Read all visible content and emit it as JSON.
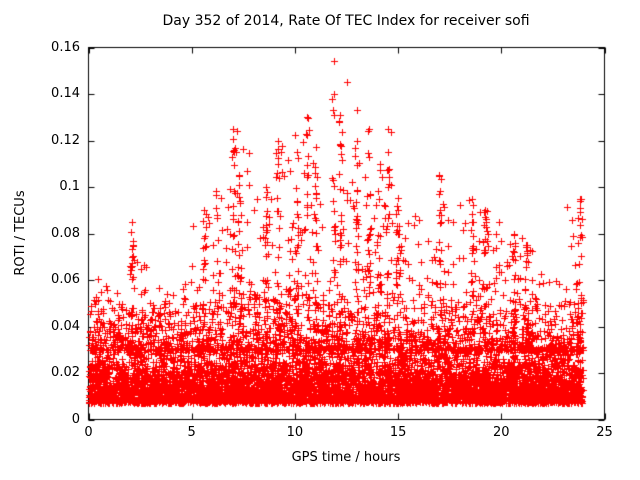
{
  "chart_data": {
    "type": "scatter",
    "title": "Day 352 of 2014, Rate Of TEC Index for receiver sofi",
    "xlabel": "GPS time / hours",
    "ylabel": "ROTI / TECUs",
    "xlim": [
      0,
      25
    ],
    "ylim": [
      0,
      0.16
    ],
    "x_ticks": [
      "0",
      "5",
      "10",
      "15",
      "20",
      "25"
    ],
    "y_ticks": [
      "0",
      "0.02",
      "0.04",
      "0.06",
      "0.08",
      "0.1",
      "0.12",
      "0.14",
      "0.16"
    ],
    "grid": false,
    "legend": "none",
    "marker": "plus",
    "marker_color": "#ff0000",
    "frame_color": "#000000",
    "background_color": "#ffffff",
    "series_description": "Dense baseline band of ROTI values roughly 0.007-0.035 TECU across all 24 hours, with intermittent vertical spike clusters; strongest activity between hours 5 and 15, maximum ~0.154 near hour 12.",
    "x_data_range": [
      0,
      23.95
    ],
    "baseline": {
      "n": 7000,
      "y_min": 0.007,
      "mean_excess": 0.0095,
      "y_cap": 0.055
    },
    "spike_envelope_by_hour": [
      0.062,
      0.052,
      0.085,
      0.058,
      0.06,
      0.09,
      0.1,
      0.125,
      0.1,
      0.12,
      0.13,
      0.115,
      0.154,
      0.125,
      0.125,
      0.09,
      0.08,
      0.105,
      0.095,
      0.09,
      0.08,
      0.075,
      0.06,
      0.095
    ],
    "notable_spikes": [
      {
        "x": 2.1,
        "y": 0.085
      },
      {
        "x": 5.6,
        "y": 0.09
      },
      {
        "x": 7.0,
        "y": 0.125
      },
      {
        "x": 7.3,
        "y": 0.105
      },
      {
        "x": 8.6,
        "y": 0.1
      },
      {
        "x": 9.2,
        "y": 0.12
      },
      {
        "x": 10.1,
        "y": 0.115
      },
      {
        "x": 10.6,
        "y": 0.13
      },
      {
        "x": 11.0,
        "y": 0.117
      },
      {
        "x": 11.9,
        "y": 0.154
      },
      {
        "x": 12.2,
        "y": 0.131
      },
      {
        "x": 13.0,
        "y": 0.12
      },
      {
        "x": 13.6,
        "y": 0.125
      },
      {
        "x": 14.1,
        "y": 0.11
      },
      {
        "x": 14.5,
        "y": 0.125
      },
      {
        "x": 15.0,
        "y": 0.09
      },
      {
        "x": 17.0,
        "y": 0.105
      },
      {
        "x": 18.6,
        "y": 0.095
      },
      {
        "x": 19.2,
        "y": 0.09
      },
      {
        "x": 20.6,
        "y": 0.08
      },
      {
        "x": 21.2,
        "y": 0.075
      },
      {
        "x": 23.8,
        "y": 0.095
      }
    ],
    "seed": 352
  }
}
